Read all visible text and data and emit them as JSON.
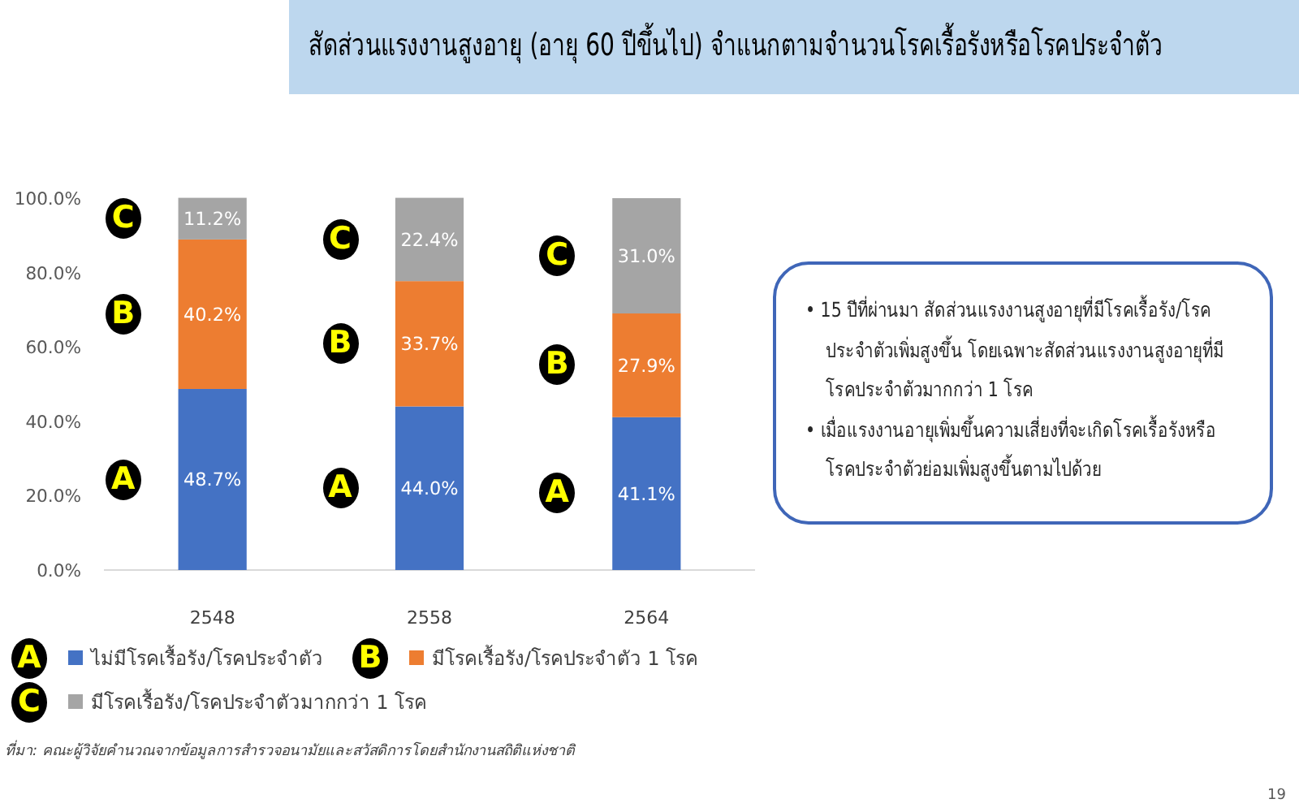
{
  "chart_data": {
    "type": "bar",
    "title": "สัดส่วนแรงงานสูงอายุ (อายุ 60 ปีขึ้นไป) จำแนกตามจำนวนโรคเรื้อรังหรือโรคประจำตัว",
    "categories": [
      "2548",
      "2558",
      "2564"
    ],
    "stacked": true,
    "series": [
      {
        "name": "ไม่มีโรคเรื้อรัง/โรคประจำตัว",
        "color": "#4472c4",
        "values": [
          48.7,
          44.0,
          41.1
        ],
        "value_labels": [
          "48.7%",
          "44.0%",
          "41.1%"
        ]
      },
      {
        "name": "มีโรคเรื้อรัง/โรคประจำตัว 1 โรค",
        "color": "#ed7d31",
        "values": [
          40.2,
          33.7,
          27.9
        ],
        "value_labels": [
          "40.2%",
          "33.7%",
          "27.9%"
        ]
      },
      {
        "name": "มีโรคเรื้อรัง/โรคประจำตัวมากกว่า 1 โรค",
        "color": "#a5a5a5",
        "values": [
          11.2,
          22.4,
          31.0
        ],
        "value_labels": [
          "11.2%",
          "22.4%",
          "31.0%"
        ]
      }
    ],
    "ylim": [
      0,
      100.1
    ],
    "yticks": [
      {
        "value": 0,
        "label": "0.0%"
      },
      {
        "value": 20,
        "label": "20.0%"
      },
      {
        "value": 40,
        "label": "40.0%"
      },
      {
        "value": 60,
        "label": "60.0%"
      },
      {
        "value": 80,
        "label": "80.0%"
      },
      {
        "value": 100,
        "label": "100.0%"
      }
    ],
    "legend": "bottom",
    "annotations": [
      "• 15 ปีที่ผ่านมา สัดส่วนแรงงานสูงอายุที่มีโรคเรื้อรัง/โรคประจำตัวเพิ่มสูงขึ้น โดยเฉพาะสัดส่วนแรงงานสูงอายุที่มีโรคประจำตัวมากกว่า 1 โรค",
      "• เมื่อแรงงานอายุเพิ่มขึ้นความเสี่ยงที่จะเกิดโรคเรื้อรังหรือโรคประจำตัวย่อมเพิ่มสูงขึ้นตามไปด้วย",
      "ที่มา: คณะผู้วิจัยคำนวณจากข้อมูลการสำรวจอนามัยและสวัสดิการโดยสำนักงานสถิติแห่งชาติ",
      "19",
      "A",
      "B",
      "C",
      "A",
      "B",
      "C",
      "A",
      "B",
      "C",
      "A",
      "B",
      "C"
    ]
  }
}
